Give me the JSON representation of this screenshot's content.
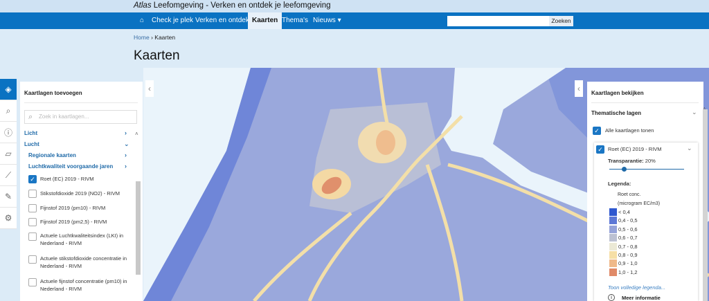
{
  "header": {
    "title_italic": "Atlas",
    "title_rest": " Leefomgeving - Verken en ontdek je leefomgeving"
  },
  "nav": {
    "home_icon": "home-icon",
    "items": [
      {
        "label": "Check je plek"
      },
      {
        "label": "Verken en ontdek"
      },
      {
        "label": "Kaarten",
        "active": true
      },
      {
        "label": "Thema's"
      },
      {
        "label": "Nieuws ▾"
      }
    ],
    "search_value": "",
    "search_button": "Zoeken"
  },
  "breadcrumb": {
    "home": "Home",
    "sep": "›",
    "current": "Kaarten"
  },
  "page_title": "Kaarten",
  "tools": [
    "layers-icon",
    "search-icon",
    "info-icon",
    "map-icon",
    "ruler-icon",
    "pencil-icon",
    "gear-icon"
  ],
  "left_panel": {
    "title": "Kaartlagen toevoegen",
    "search_placeholder": "Zoek in kaartlagen...",
    "categories": [
      {
        "label": "Licht",
        "state": "collapsed"
      },
      {
        "label": "Lucht",
        "state": "expanded"
      },
      {
        "label": "Regionale kaarten",
        "state": "collapsed"
      },
      {
        "label": "Luchtkwaliteit voorgaande jaren",
        "state": "collapsed"
      }
    ],
    "layers": [
      {
        "label": "Roet (EC) 2019 - RIVM",
        "checked": true
      },
      {
        "label": "Stikstofdioxide 2019 (NO2) - RIVM",
        "checked": false
      },
      {
        "label": "Fijnstof 2019 (pm10) - RIVM",
        "checked": false
      },
      {
        "label": "Fijnstof 2019 (pm2,5) - RIVM",
        "checked": false
      },
      {
        "label": "Actuele Luchtkwaliteitsindex (LKI) in Nederland - RIVM",
        "checked": false
      },
      {
        "label": "Actuele stikstofdioxide concentratie in Nederland - RIVM",
        "checked": false
      },
      {
        "label": "Actuele fijnstof concentratie (pm10) in Nederland - RIVM",
        "checked": false
      }
    ]
  },
  "right_panel": {
    "title": "Kaartlagen bekijken",
    "section": "Thematische lagen",
    "show_all": "Alle kaartlagen tonen",
    "show_all_checked": true,
    "layer": {
      "label": "Roet (EC) 2019 - RIVM",
      "checked": true,
      "transparency_label": "Transparantie:",
      "transparency_value": "20%",
      "transparency_pct": 20,
      "legend_title": "Legenda:",
      "legend_line1": "Roet conc.",
      "legend_line2": "(microgram EC/m3)",
      "legend": [
        {
          "label": "< 0,4",
          "color": "#2f58cf"
        },
        {
          "label": "0,4 - 0,5",
          "color": "#5d78d6"
        },
        {
          "label": "0,5 - 0,6",
          "color": "#95a3d9"
        },
        {
          "label": "0,6 - 0,7",
          "color": "#bcc1d2"
        },
        {
          "label": "0,7 - 0,8",
          "color": "#ebe9d6"
        },
        {
          "label": "0,8 - 0,9",
          "color": "#f6dfa6"
        },
        {
          "label": "0,9 - 1,0",
          "color": "#efb98a"
        },
        {
          "label": "1,0 - 1,2",
          "color": "#e08a68"
        }
      ],
      "full_legend_link": "Toon volledige legenda...",
      "more_info": "Meer informatie"
    }
  }
}
